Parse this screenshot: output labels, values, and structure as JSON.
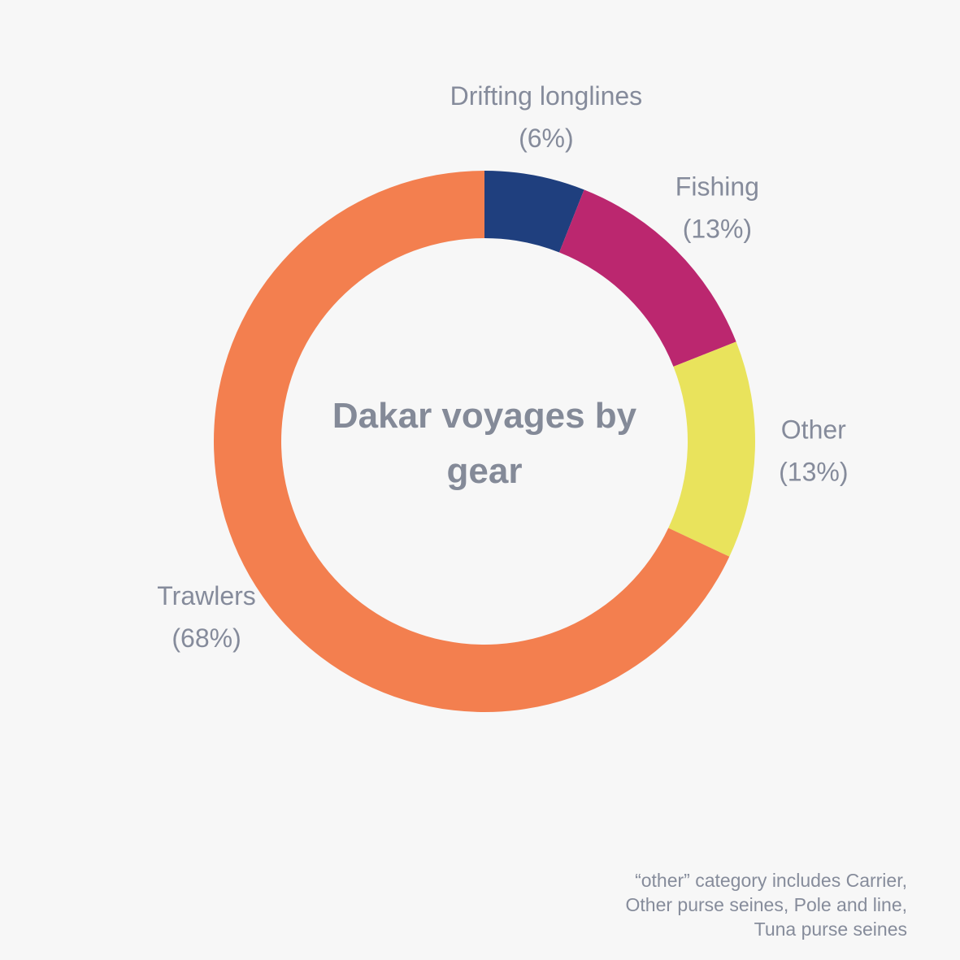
{
  "chart_data": {
    "type": "pie",
    "donut": true,
    "title_lines": [
      "Dakar voyages by",
      "gear"
    ],
    "slices": [
      {
        "name": "Drifting longlines",
        "value": 6,
        "label_pct": "(6%)",
        "color": "#1f3f7e"
      },
      {
        "name": "Fishing",
        "value": 13,
        "label_pct": "(13%)",
        "color": "#bb276f"
      },
      {
        "name": "Other",
        "value": 13,
        "label_pct": "(13%)",
        "color": "#e9e35c"
      },
      {
        "name": "Trawlers",
        "value": 68,
        "label_pct": "(68%)",
        "color": "#f37f4f"
      }
    ],
    "legend": "none"
  },
  "note": {
    "lines": [
      "“other” category includes Carrier,",
      "Other purse seines, Pole and line,",
      "Tuna purse seines"
    ]
  }
}
